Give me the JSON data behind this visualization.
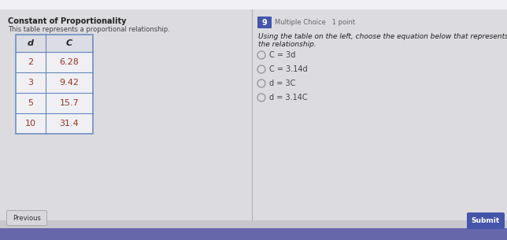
{
  "title": "Constant of Proportionality",
  "subtitle": "This table represents a proportional relationship.",
  "table_headers": [
    "d",
    "C"
  ],
  "table_data": [
    [
      "2",
      "6.28"
    ],
    [
      "3",
      "9.42"
    ],
    [
      "5",
      "15.7"
    ],
    [
      "10",
      "31.4"
    ]
  ],
  "question_number": "9",
  "question_type": "Multiple Choice   1 point",
  "question_text_line1": "Using the table on the left, choose the equation below that represents",
  "question_text_line2": "the relationship.",
  "choices": [
    "C = 3d",
    "C = 3.14d",
    "d = 3C",
    "d = 3.14C"
  ],
  "bg_color": "#c8c8cc",
  "top_strip_color": "#e8e8ec",
  "left_panel_color": "#dcdce0",
  "right_panel_color": "#dcdce0",
  "divider_color": "#b0b0b8",
  "table_bg": "#f0f0f4",
  "table_header_bg": "#dcdce4",
  "table_border_color": "#6688bb",
  "title_color": "#222222",
  "subtitle_color": "#444444",
  "question_number_bg": "#4455aa",
  "question_number_color": "#ffffff",
  "question_type_color": "#666666",
  "question_text_color": "#222222",
  "choice_color": "#444444",
  "radio_color": "#999999",
  "previous_btn_bg": "#d8d8dc",
  "previous_btn_border": "#aaaaaa",
  "previous_btn_text": "Previous",
  "previous_btn_text_color": "#333333",
  "submit_btn_bg": "#4455aa",
  "submit_btn_text": "Submit",
  "submit_btn_text_color": "#ffffff",
  "cell_text_color": "#993322",
  "bottom_bar_color": "#6666aa",
  "top_bar_color": "#f0f0f4"
}
